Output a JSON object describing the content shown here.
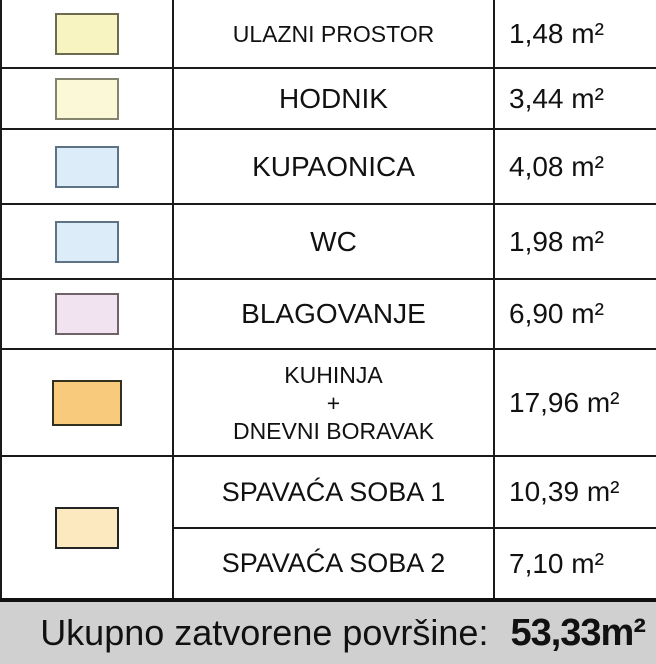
{
  "legend": {
    "rows": [
      {
        "swatch": "#f8f4c2",
        "name": "ULAZNI PROSTOR",
        "area": "1,48 m²"
      },
      {
        "swatch": "#fbf8d8",
        "name": "HODNIK",
        "area": "3,44 m²"
      },
      {
        "swatch": "#dcecf8",
        "name": "KUPAONICA",
        "area": "4,08 m²"
      },
      {
        "swatch": "#dcecf8",
        "name": "WC",
        "area": "1,98 m²"
      },
      {
        "swatch": "#f1e3ef",
        "name": "BLAGOVANJE",
        "area": "6,90 m²"
      },
      {
        "swatch": "#f8ca7c",
        "name": "KUHINJA\n+\nDNEVNI BORAVAK",
        "area": "17,96 m²"
      },
      {
        "swatch": "#fce9c0",
        "name": "SPAVAĆA SOBA 1",
        "area": "10,39 m²"
      },
      {
        "swatch": "#fce9c0",
        "name": "SPAVAĆA SOBA 2",
        "area": "7,10 m²"
      }
    ],
    "merged_swatch_note": "rows 7 and 8 share one swatch cell"
  },
  "footer": {
    "label": "Ukupno zatvorene površine:",
    "value": "53,33m²"
  },
  "colors": {
    "grid_line": "#1a1a1a",
    "footer_bg": "#d0d0d0",
    "swatch_pale_yellow": "#f8f4c2",
    "swatch_cream": "#fbf8d8",
    "swatch_light_blue": "#dcecf8",
    "swatch_pale_pink": "#f1e3ef",
    "swatch_orange": "#f8ca7c",
    "swatch_peach": "#fce9c0"
  }
}
